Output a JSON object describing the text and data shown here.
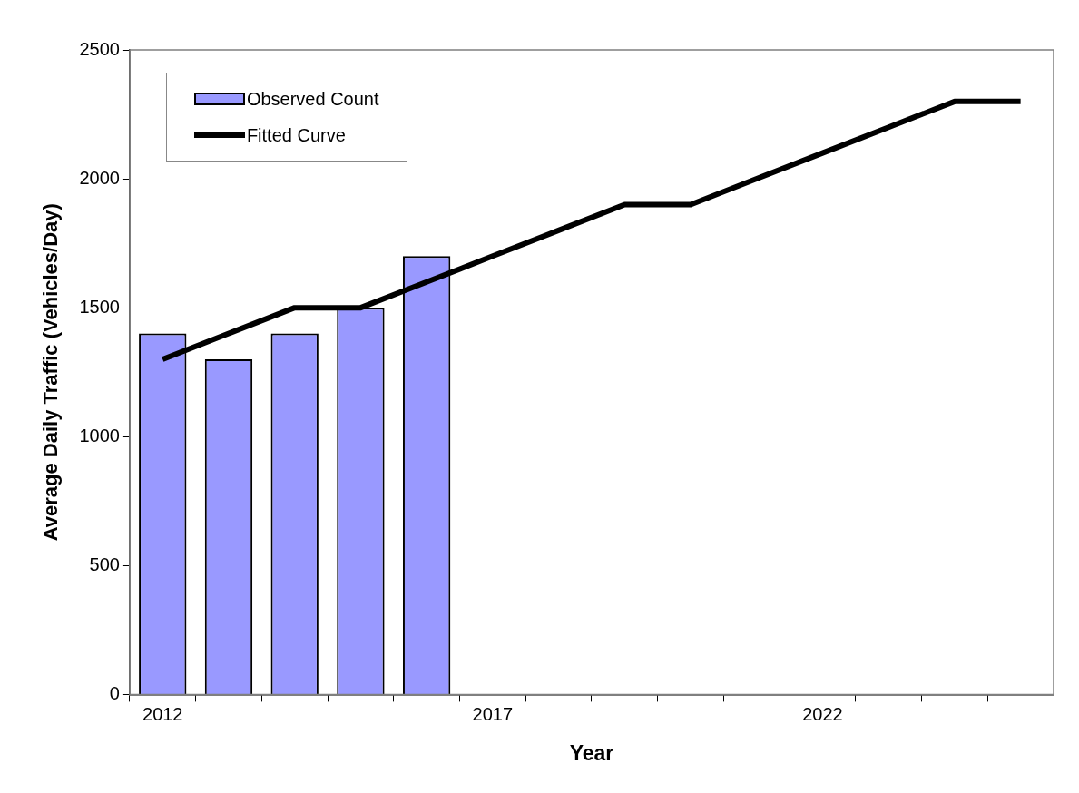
{
  "chart_data": {
    "type": "bar",
    "xlabel": "Year",
    "ylabel": "Average Daily Traffic (Vehicles/Day)",
    "categories": [
      "2012",
      null,
      null,
      null,
      null,
      "2017",
      null,
      null,
      null,
      null,
      "2022",
      null,
      null,
      null
    ],
    "series": [
      {
        "name": "Observed Count",
        "color": "#9999ff",
        "values": [
          1400,
          1300,
          1400,
          1500,
          1700,
          null,
          null,
          null,
          null,
          null,
          null,
          null,
          null,
          null
        ]
      },
      {
        "name": "Fitted Curve",
        "type": "line",
        "color": "#000000",
        "values": [
          1300,
          1400,
          1500,
          1500,
          1600,
          1700,
          1800,
          1900,
          1900,
          2000,
          2100,
          2200,
          2300,
          2300
        ]
      }
    ],
    "ylim": [
      0,
      2500
    ],
    "yticks": [
      0,
      500,
      1000,
      1500,
      2000,
      2500
    ],
    "grid": false,
    "legend": "top left"
  }
}
